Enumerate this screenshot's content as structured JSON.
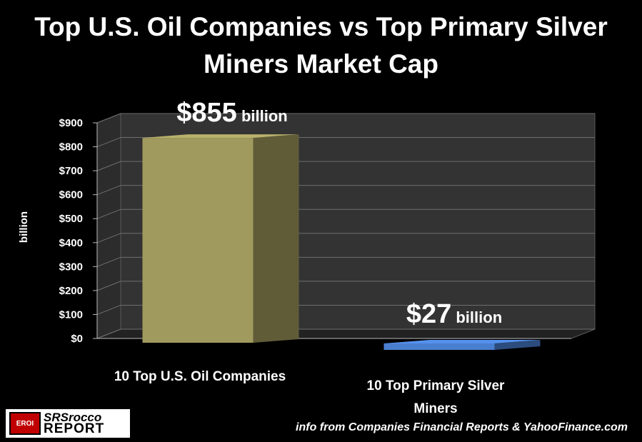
{
  "chart_data": {
    "type": "bar",
    "title": "Top U.S. Oil Companies vs Top Primary Silver Miners Market Cap",
    "categories": [
      "10 Top U.S. Oil Companies",
      "10 Top Primary Silver Miners"
    ],
    "values": [
      855,
      27
    ],
    "ylabel": "billion",
    "ylim": [
      0,
      900
    ],
    "yticks": [
      "$0",
      "$100",
      "$200",
      "$300",
      "$400",
      "$500",
      "$600",
      "$700",
      "$800",
      "$900"
    ],
    "data_labels": [
      {
        "value": "$855",
        "unit": "billion"
      },
      {
        "value": "$27",
        "unit": "billion"
      }
    ],
    "colors": [
      "#a09a5e",
      "#4a7fd0"
    ],
    "grid": true,
    "style": "3d-column"
  },
  "source": "info from Companies Financial Reports & YahooFinance.com",
  "logo": {
    "badge": "EROI",
    "line1": "SRSrocco",
    "line2": "REPORT"
  }
}
